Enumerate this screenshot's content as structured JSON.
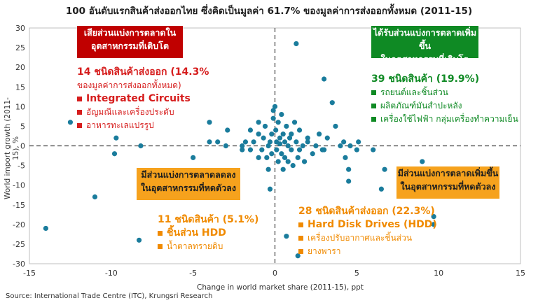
{
  "title": "100 อันดับแรกสินค้าส่งออกไทย ซึ่งคิดเป็นมูลค่า 61.7% ของมูลค่าการส่งออกทั้งหมด (2011-15)",
  "source": "Source: International Trade Centre (ITC), Krungsri Research",
  "quadrants": {
    "top_left": {
      "box": [
        "เสียส่วนแบ่งการตลาดใน",
        "อุตสาหกรรมที่เติบโต"
      ],
      "head1": "14 ชนิดสินค้าส่งออก (14.3%",
      "head2": "ของมูลค่าการส่งออกทั้งหมด)",
      "items": [
        "Integrated Circuits",
        "อัญมณีและเครื่องประดับ",
        "อาหารทะเลแปรรูป"
      ]
    },
    "top_right": {
      "box": [
        "ได้รับส่วนแบ่งการตลาดเพิ่มขึ้น",
        "ในอุตสาหกรรมที่เติบโต"
      ],
      "head": "39 ชนิดสินค้า (19.9%)",
      "items": [
        "รถยนต์และชิ้นส่วน",
        "ผลิตภัณฑ์มันสำปะหลัง",
        "เครื่องใช้ไฟฟ้า กลุ่มเครื่องทำความเย็น"
      ]
    },
    "bottom_left": {
      "box": [
        "มีส่วนแบ่งการตลาดลดลง",
        "ในอุตสาหกรรมที่หดตัวลง"
      ],
      "head": "11 ชนิดสินค้า (5.1%)",
      "items": [
        "ชิ้นส่วน HDD",
        "น้ำตาลทรายดิบ"
      ]
    },
    "bottom_right": {
      "box": [
        "มีส่วนแบ่งการตลาดเพิ่มขึ้น",
        "ในอุตสาหกรรมที่หดตัวลง"
      ],
      "head": "28 ชนิดสินค้าส่งออก (22.3%)",
      "items": [
        "Hard Disk Drives (HDD)",
        "เครื่องปรับอากาศและชิ้นส่วน",
        "ยางพารา"
      ]
    }
  },
  "colors": {
    "point": "#1a7c9c",
    "red": "#c00000",
    "green": "#0f8a24",
    "orange": "#f6a21d"
  },
  "chart_data": {
    "type": "scatter",
    "xlabel": "Change in world market share (2011-15), ppt",
    "ylabel": "World import growth (2011-15), %",
    "xlim": [
      -15,
      15
    ],
    "ylim": [
      -30,
      30
    ],
    "xticks": [
      -15,
      -10,
      -5,
      0,
      5,
      10,
      15
    ],
    "yticks": [
      -30,
      -25,
      -20,
      -15,
      -10,
      -5,
      0,
      5,
      10,
      15,
      20,
      25,
      30
    ],
    "grid": false,
    "reference_lines": "dashed lines at x=0 and y=0",
    "points": [
      [
        -14,
        -21
      ],
      [
        -12.5,
        6
      ],
      [
        -11,
        -13
      ],
      [
        -9.7,
        2
      ],
      [
        -9.8,
        -2
      ],
      [
        -8.2,
        0
      ],
      [
        -8.3,
        -24
      ],
      [
        -4,
        6
      ],
      [
        -4,
        1
      ],
      [
        -3.5,
        1
      ],
      [
        -3,
        0
      ],
      [
        -2.9,
        4
      ],
      [
        -2,
        0
      ],
      [
        -2,
        -1
      ],
      [
        -1.8,
        1
      ],
      [
        -1.5,
        4
      ],
      [
        -1.3,
        1
      ],
      [
        -1,
        3
      ],
      [
        -1,
        6
      ],
      [
        -0.8,
        -1
      ],
      [
        -0.7,
        2
      ],
      [
        -0.6,
        5
      ],
      [
        -0.5,
        -3
      ],
      [
        -0.4,
        -6
      ],
      [
        -0.4,
        0
      ],
      [
        -0.3,
        1
      ],
      [
        -0.2,
        3
      ],
      [
        -0.2,
        -2
      ],
      [
        -0.1,
        9
      ],
      [
        -0.1,
        7
      ],
      [
        0,
        10
      ],
      [
        0.05,
        4
      ],
      [
        0.1,
        1
      ],
      [
        0.1,
        -1
      ],
      [
        0.2,
        6
      ],
      [
        0.2,
        -4
      ],
      [
        0.3,
        2
      ],
      [
        0.3,
        0.5
      ],
      [
        0.4,
        8
      ],
      [
        0.4,
        -2
      ],
      [
        0.5,
        3
      ],
      [
        0.5,
        -6
      ],
      [
        0.6,
        1
      ],
      [
        0.6,
        -3
      ],
      [
        0.7,
        5
      ],
      [
        0.8,
        0
      ],
      [
        0.8,
        -4
      ],
      [
        0.9,
        2
      ],
      [
        1,
        -1
      ],
      [
        1,
        3
      ],
      [
        1.1,
        -5
      ],
      [
        1.2,
        6
      ],
      [
        1.3,
        1
      ],
      [
        1.4,
        -3
      ],
      [
        1.5,
        4
      ],
      [
        1.5,
        -1
      ],
      [
        1.7,
        0
      ],
      [
        1.8,
        -4
      ],
      [
        2,
        2
      ],
      [
        2,
        1
      ],
      [
        2.3,
        -2
      ],
      [
        2.5,
        0
      ],
      [
        2.7,
        3
      ],
      [
        2.9,
        -1
      ],
      [
        3,
        17
      ],
      [
        3,
        -1
      ],
      [
        3.2,
        2
      ],
      [
        3.5,
        11
      ],
      [
        3.7,
        5
      ],
      [
        4,
        0
      ],
      [
        4.2,
        1
      ],
      [
        4.3,
        -3
      ],
      [
        4.5,
        -9
      ],
      [
        4.6,
        0
      ],
      [
        4.5,
        -6
      ],
      [
        5,
        -1
      ],
      [
        5.1,
        1
      ],
      [
        6,
        -1
      ],
      [
        6.5,
        -11
      ],
      [
        6.7,
        -6
      ],
      [
        9,
        -4
      ],
      [
        9.7,
        -18
      ],
      [
        9.7,
        -20
      ],
      [
        1.3,
        26
      ],
      [
        -1,
        -3
      ],
      [
        -0.3,
        -11
      ],
      [
        0.7,
        -23
      ],
      [
        1.4,
        -28
      ],
      [
        -5,
        -3
      ],
      [
        -1.5,
        -1
      ]
    ]
  }
}
